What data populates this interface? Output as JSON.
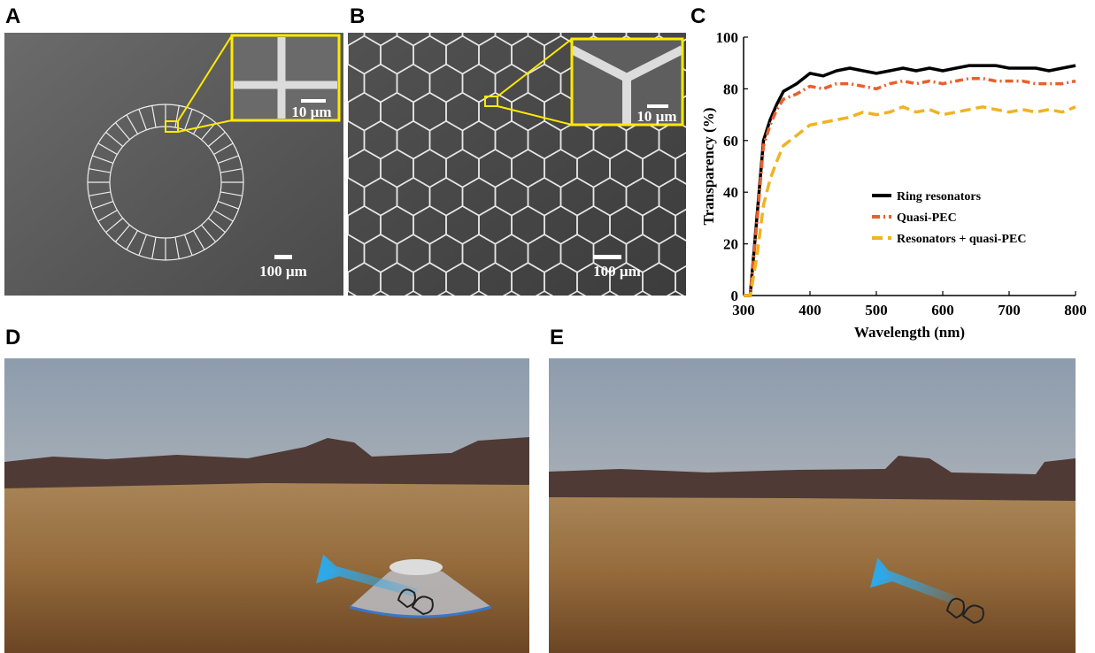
{
  "panels": {
    "a": {
      "label": "A",
      "scale_bar": "100 µm",
      "inset_scale_bar": "10 µm"
    },
    "b": {
      "label": "B",
      "scale_bar": "100 µm",
      "inset_scale_bar": "10 µm"
    },
    "d": {
      "label": "D"
    },
    "e": {
      "label": "E"
    }
  },
  "chart_data": {
    "type": "line",
    "panel_label": "C",
    "xlabel": "Wavelength (nm)",
    "ylabel": "Transparency (%)",
    "x": [
      300,
      310,
      320,
      330,
      340,
      350,
      360,
      380,
      400,
      420,
      440,
      460,
      480,
      500,
      520,
      540,
      560,
      580,
      600,
      620,
      640,
      660,
      680,
      700,
      720,
      740,
      760,
      780,
      800
    ],
    "series": [
      {
        "name": "Ring resonators",
        "color": "#000000",
        "linestyle": "solid",
        "values": [
          0,
          0,
          30,
          60,
          68,
          74,
          79,
          82,
          86,
          85,
          87,
          88,
          87,
          86,
          87,
          88,
          87,
          88,
          87,
          88,
          89,
          89,
          89,
          88,
          88,
          88,
          87,
          88,
          89
        ]
      },
      {
        "name": "Quasi-PEC",
        "color": "#e8602c",
        "linestyle": "dashdot",
        "values": [
          0,
          0,
          28,
          58,
          66,
          72,
          76,
          78,
          81,
          80,
          82,
          82,
          81,
          80,
          82,
          83,
          82,
          83,
          82,
          83,
          84,
          84,
          83,
          83,
          83,
          82,
          82,
          82,
          83
        ]
      },
      {
        "name": "Resonators + quasi-PEC",
        "color": "#f0b323",
        "linestyle": "dashed",
        "values": [
          0,
          0,
          15,
          35,
          45,
          52,
          58,
          62,
          66,
          67,
          68,
          69,
          71,
          70,
          71,
          73,
          71,
          72,
          70,
          71,
          72,
          73,
          72,
          71,
          72,
          71,
          72,
          71,
          73
        ]
      }
    ],
    "xlim": [
      300,
      800
    ],
    "ylim": [
      0,
      100
    ],
    "xticks": [
      300,
      400,
      500,
      600,
      700,
      800
    ],
    "yticks": [
      0,
      20,
      40,
      60,
      80,
      100
    ],
    "legend": "lower right"
  }
}
